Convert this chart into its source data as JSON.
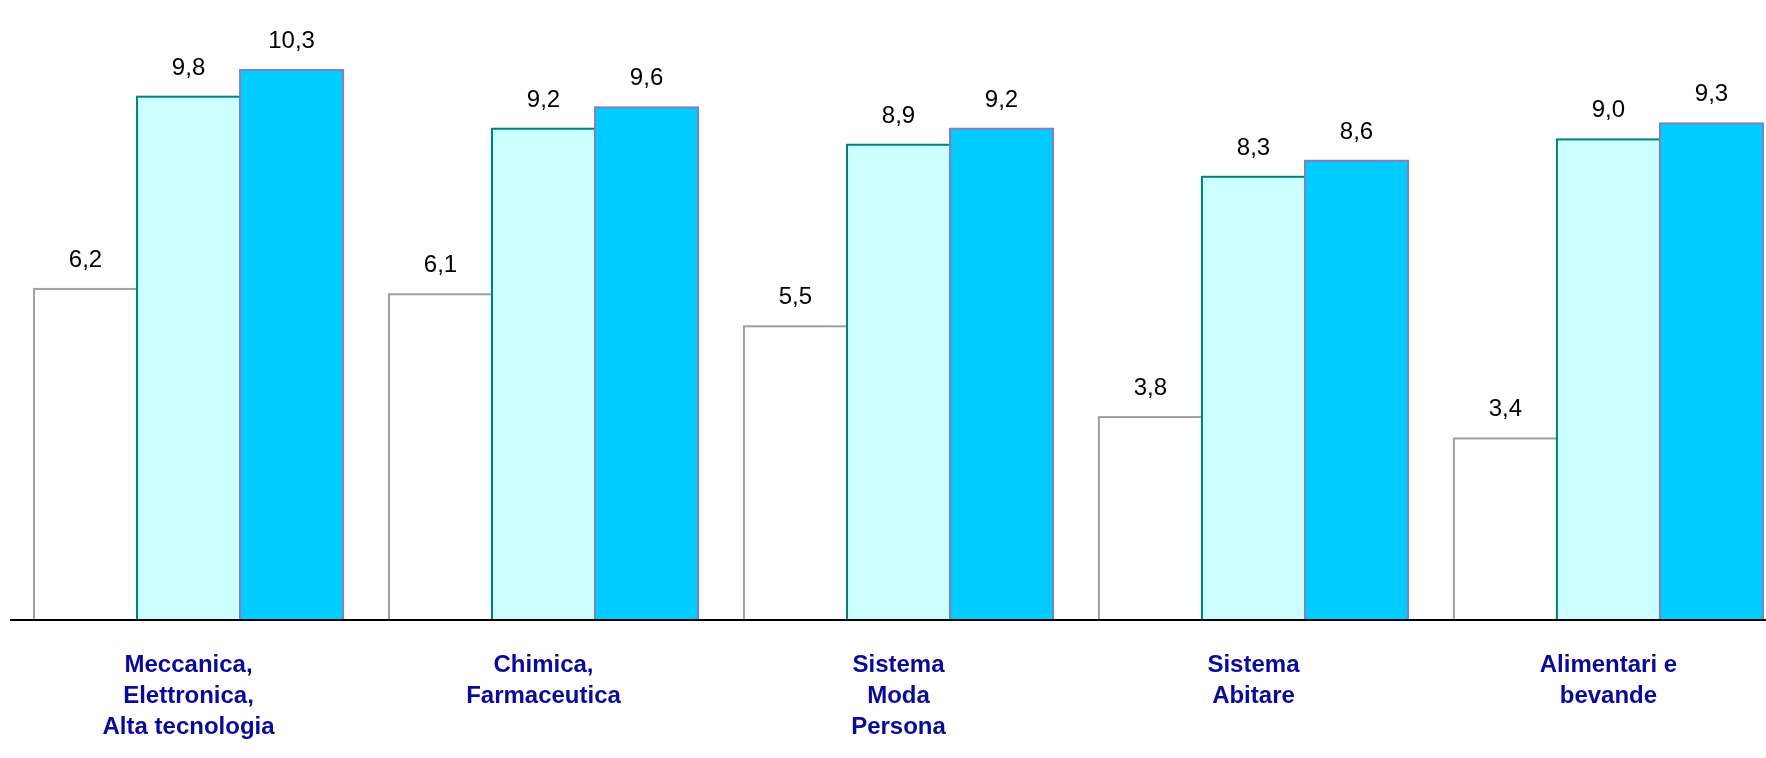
{
  "chart_data": {
    "type": "bar",
    "categories": [
      "Meccanica,\nElettronica,\nAlta tecnologia",
      "Chimica,\nFarmaceutica",
      "Sistema\nModa\nPersona",
      "Sistema\nAbitare",
      "Alimentari e\nbevande"
    ],
    "series": [
      {
        "color": "#ffffff",
        "values": [
          6.2,
          6.1,
          5.5,
          3.8,
          3.4
        ],
        "value_labels": [
          "6,2",
          "6,1",
          "5,5",
          "3,8",
          "3,4"
        ]
      },
      {
        "color": "#ccffff",
        "values": [
          9.8,
          9.2,
          8.9,
          8.3,
          9.0
        ],
        "value_labels": [
          "9,8",
          "9,2",
          "8,9",
          "8,3",
          "9,0"
        ]
      },
      {
        "color": "#00ccff",
        "values": [
          10.3,
          9.6,
          9.2,
          8.6,
          9.3
        ],
        "value_labels": [
          "10,3",
          "9,6",
          "9,2",
          "8,6",
          "9,3"
        ]
      }
    ]
  }
}
